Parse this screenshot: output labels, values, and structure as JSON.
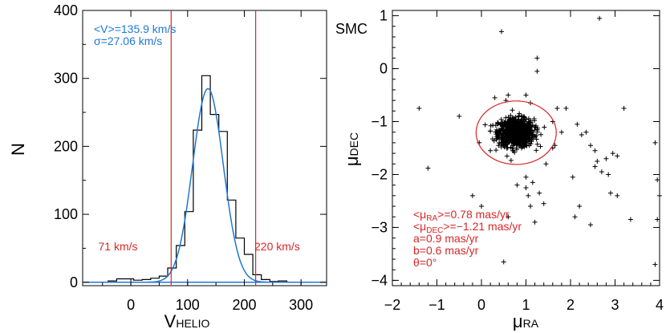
{
  "chart_data": [
    {
      "type": "histogram",
      "xlabel": "V",
      "xlabel_sub": "HELIO",
      "ylabel": "N",
      "xlim": [
        -85,
        345
      ],
      "ylim": [
        -5,
        400
      ],
      "xticks": [
        0,
        100,
        200,
        300
      ],
      "yticks": [
        0,
        100,
        200,
        300,
        400
      ],
      "grid": false,
      "histogram": {
        "bin_edges": [
          -85,
          -70,
          -55,
          -40,
          -25,
          -10,
          5,
          20,
          35,
          50,
          65,
          80,
          95,
          110,
          125,
          140,
          155,
          170,
          185,
          200,
          215,
          230,
          245,
          260,
          275
        ],
        "counts": [
          0,
          0,
          0,
          2,
          5,
          5,
          3,
          4,
          6,
          9,
          21,
          54,
          104,
          224,
          304,
          247,
          222,
          121,
          65,
          41,
          11,
          4,
          1,
          2
        ],
        "color": "#000000"
      },
      "gaussian_fit": {
        "mean": 135.9,
        "sigma": 27.06,
        "peak": 285,
        "color": "#1f77d4"
      },
      "vlines": [
        {
          "x": 71,
          "label": "71 km/s",
          "color": "#d62728"
        },
        {
          "x": 220,
          "label": "220 km/s",
          "color": "#d62728"
        }
      ],
      "annotations": {
        "mean_text": "<V>=135.9 km/s",
        "sigma_text": "σ=27.06 km/s",
        "color": "#1f77d4"
      }
    },
    {
      "type": "scatter",
      "title": "SMC",
      "xlabel": "μ",
      "xlabel_sub": "RA",
      "ylabel": "μ",
      "ylabel_sub": "DEC",
      "xlim": [
        -2,
        4
      ],
      "ylim": [
        -4.1,
        1.1
      ],
      "xticks": [
        -2,
        -1,
        0,
        1,
        2,
        3,
        4
      ],
      "yticks": [
        -4,
        -3,
        -2,
        -1,
        0,
        1
      ],
      "grid": false,
      "marker": "+",
      "marker_color": "#000000",
      "points": [
        [
          -1.4,
          -0.75
        ],
        [
          -1.2,
          -1.88
        ],
        [
          -0.5,
          -0.9
        ],
        [
          -0.2,
          -2.4
        ],
        [
          0.0,
          -2.6
        ],
        [
          0.45,
          0.7
        ],
        [
          0.5,
          -3.65
        ],
        [
          0.6,
          -2.8
        ],
        [
          0.8,
          -2.2
        ],
        [
          1.0,
          -2.05
        ],
        [
          1.0,
          -2.25
        ],
        [
          1.05,
          -2.4
        ],
        [
          1.1,
          -2.6
        ],
        [
          1.2,
          -2.9
        ],
        [
          1.15,
          -2.15
        ],
        [
          1.3,
          -2.35
        ],
        [
          1.4,
          -2.55
        ],
        [
          1.25,
          0.2
        ],
        [
          1.25,
          -0.05
        ],
        [
          1.1,
          -0.65
        ],
        [
          1.0,
          -0.5
        ],
        [
          0.3,
          -0.55
        ],
        [
          0.6,
          -0.5
        ],
        [
          1.7,
          -0.75
        ],
        [
          1.6,
          -1.5
        ],
        [
          2.15,
          -1.05
        ],
        [
          2.25,
          -1.25
        ],
        [
          2.35,
          -1.2
        ],
        [
          2.45,
          -1.45
        ],
        [
          2.55,
          -1.55
        ],
        [
          2.6,
          -1.75
        ],
        [
          2.55,
          -1.85
        ],
        [
          2.7,
          -1.95
        ],
        [
          2.8,
          -1.7
        ],
        [
          2.95,
          -1.6
        ],
        [
          3.05,
          -1.65
        ],
        [
          2.85,
          -2.0
        ],
        [
          2.05,
          -2.05
        ],
        [
          2.2,
          -2.6
        ],
        [
          2.1,
          -2.8
        ],
        [
          2.45,
          -2.95
        ],
        [
          2.9,
          -2.35
        ],
        [
          3.05,
          -2.4
        ],
        [
          3.35,
          -2.85
        ],
        [
          3.2,
          -0.75
        ],
        [
          2.65,
          0.95
        ],
        [
          3.9,
          -1.4
        ],
        [
          3.95,
          -2.1
        ],
        [
          4.0,
          -2.4
        ],
        [
          3.95,
          -2.85
        ],
        [
          3.9,
          -3.7
        ],
        [
          1.9,
          -0.75
        ],
        [
          1.45,
          -1.8
        ],
        [
          1.65,
          -1.45
        ],
        [
          0.2,
          -1.55
        ],
        [
          -0.05,
          -1.4
        ],
        [
          1.8,
          -1.2
        ],
        [
          0.55,
          -0.6
        ],
        [
          0.85,
          -0.85
        ],
        [
          1.6,
          -1.0
        ]
      ],
      "cluster": {
        "center": [
          0.78,
          -1.21
        ],
        "sigma": [
          0.2,
          0.13
        ],
        "n": 900,
        "description": "dense cloud of proper-motion points"
      },
      "ellipse": {
        "center": [
          0.78,
          -1.21
        ],
        "a": 0.9,
        "b": 0.6,
        "theta": 0,
        "color": "#d62728"
      },
      "annotations": {
        "color": "#d62728",
        "lines": [
          {
            "pre": "<μ",
            "sub": "RA",
            "post": ">=0.78 mas/yr"
          },
          {
            "pre": "<μ",
            "sub": "DEC",
            "post": ">=−1.21 mas/yr"
          },
          {
            "pre": "a=0.9 mas/yr",
            "sub": "",
            "post": ""
          },
          {
            "pre": "b=0.6 mas/yr",
            "sub": "",
            "post": ""
          },
          {
            "pre": "θ=0°",
            "sub": "",
            "post": ""
          }
        ]
      }
    }
  ]
}
